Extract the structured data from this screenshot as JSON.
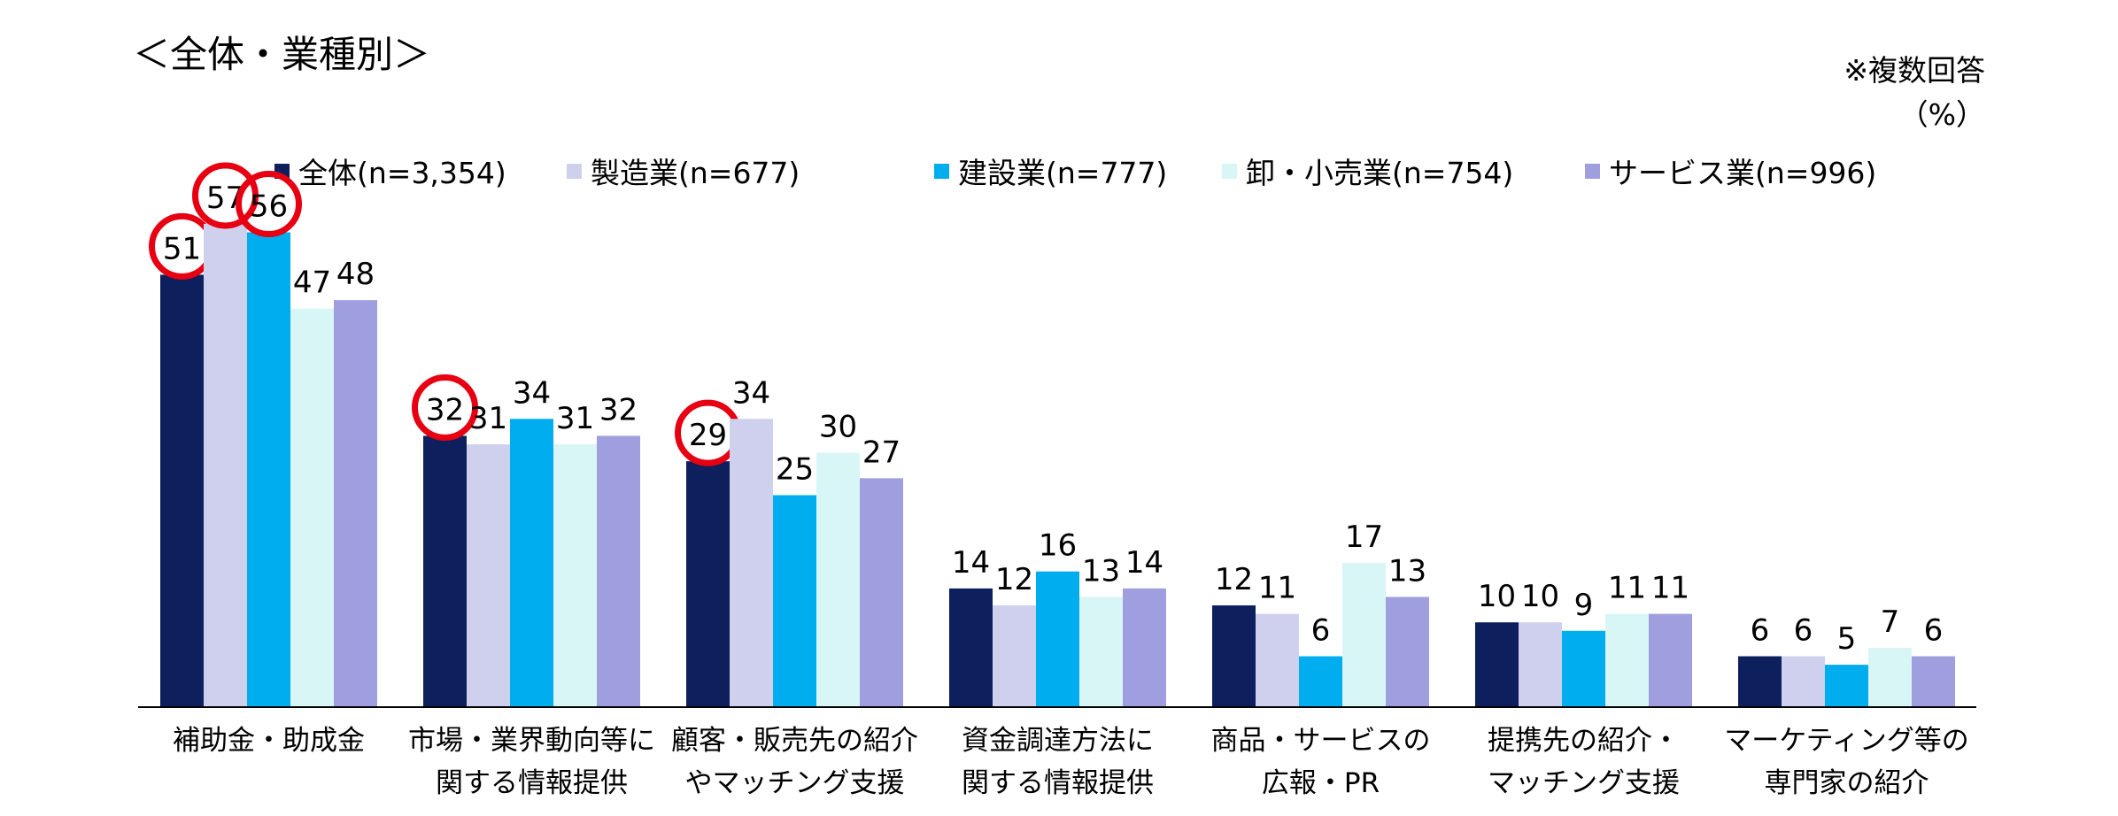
{
  "title": "＜全体・業種別＞",
  "note_line1": "※複数回答",
  "note_line2": "（%）",
  "chart_data": {
    "type": "bar",
    "title": "＜全体・業種別＞",
    "xlabel": "",
    "ylabel": "",
    "ylim": [
      0,
      60
    ],
    "grid": false,
    "legend_position": "top",
    "categories": [
      [
        "補助金・助成金"
      ],
      [
        "市場・業界動向等に",
        "関する情報提供"
      ],
      [
        "顧客・販売先の紹介",
        "やマッチング支援"
      ],
      [
        "資金調達方法に",
        "関する情報提供"
      ],
      [
        "商品・サービスの",
        "広報・PR"
      ],
      [
        "提携先の紹介・",
        "マッチング支援"
      ],
      [
        "マーケティング等の",
        "専門家の紹介"
      ]
    ],
    "series": [
      {
        "name": "全体(n=3,354)",
        "color": "#0d1f5c",
        "values": [
          51,
          32,
          29,
          14,
          12,
          10,
          6
        ]
      },
      {
        "name": "製造業(n=677)",
        "color": "#cfcfee",
        "values": [
          57,
          31,
          34,
          12,
          11,
          10,
          6
        ]
      },
      {
        "name": "建設業(n=777)",
        "color": "#00aeef",
        "values": [
          56,
          34,
          25,
          16,
          6,
          9,
          5
        ]
      },
      {
        "name": "卸・小売業(n=754)",
        "color": "#d8f6f6",
        "values": [
          47,
          31,
          30,
          13,
          17,
          11,
          7
        ]
      },
      {
        "name": "サービス業(n=996)",
        "color": "#9f9fdf",
        "values": [
          48,
          32,
          27,
          14,
          13,
          11,
          6
        ]
      }
    ],
    "highlighted": [
      {
        "series": 0,
        "category": 0
      },
      {
        "series": 1,
        "category": 0
      },
      {
        "series": 2,
        "category": 0
      },
      {
        "series": 0,
        "category": 1
      },
      {
        "series": 0,
        "category": 2
      }
    ],
    "highlight_color": "#e60012"
  }
}
